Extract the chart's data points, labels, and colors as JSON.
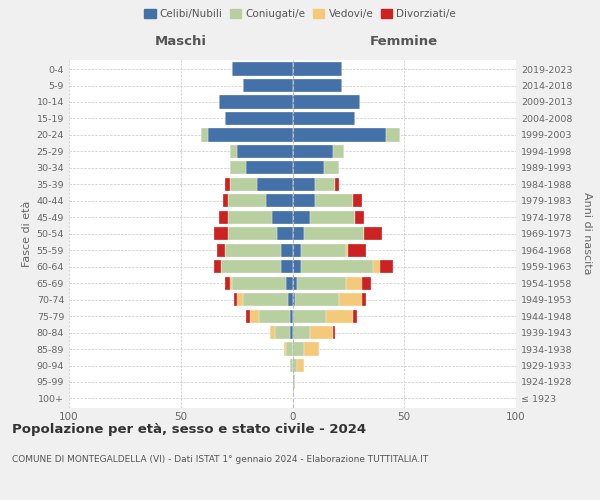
{
  "age_groups": [
    "100+",
    "95-99",
    "90-94",
    "85-89",
    "80-84",
    "75-79",
    "70-74",
    "65-69",
    "60-64",
    "55-59",
    "50-54",
    "45-49",
    "40-44",
    "35-39",
    "30-34",
    "25-29",
    "20-24",
    "15-19",
    "10-14",
    "5-9",
    "0-4"
  ],
  "birth_years": [
    "≤ 1923",
    "1924-1928",
    "1929-1933",
    "1934-1938",
    "1939-1943",
    "1944-1948",
    "1949-1953",
    "1954-1958",
    "1959-1963",
    "1964-1968",
    "1969-1973",
    "1974-1978",
    "1979-1983",
    "1984-1988",
    "1989-1993",
    "1994-1998",
    "1999-2003",
    "2004-2008",
    "2009-2013",
    "2014-2018",
    "2019-2023"
  ],
  "colors": {
    "celibi": "#4472a8",
    "coniugati": "#b8cfa0",
    "vedovi": "#f5c97a",
    "divorziati": "#cc2222"
  },
  "maschi": {
    "celibi": [
      0,
      0,
      0,
      0,
      1,
      1,
      2,
      3,
      5,
      5,
      7,
      9,
      12,
      16,
      21,
      25,
      38,
      30,
      33,
      22,
      27
    ],
    "coniugati": [
      0,
      0,
      1,
      3,
      7,
      14,
      20,
      24,
      27,
      25,
      22,
      20,
      17,
      12,
      7,
      3,
      3,
      0,
      0,
      0,
      0
    ],
    "vedovi": [
      0,
      0,
      0,
      1,
      2,
      4,
      3,
      1,
      0,
      0,
      0,
      0,
      0,
      0,
      0,
      0,
      0,
      0,
      0,
      0,
      0
    ],
    "divorziati": [
      0,
      0,
      0,
      0,
      0,
      2,
      1,
      2,
      3,
      4,
      6,
      4,
      2,
      2,
      0,
      0,
      0,
      0,
      0,
      0,
      0
    ]
  },
  "femmine": {
    "nubili": [
      0,
      0,
      0,
      0,
      0,
      0,
      1,
      2,
      4,
      4,
      5,
      8,
      10,
      10,
      14,
      18,
      42,
      28,
      30,
      22,
      22
    ],
    "coniugate": [
      0,
      1,
      2,
      5,
      8,
      15,
      20,
      22,
      32,
      20,
      27,
      20,
      17,
      9,
      7,
      5,
      6,
      0,
      0,
      0,
      0
    ],
    "vedove": [
      0,
      0,
      3,
      7,
      10,
      12,
      10,
      7,
      3,
      1,
      0,
      0,
      0,
      0,
      0,
      0,
      0,
      0,
      0,
      0,
      0
    ],
    "divorziate": [
      0,
      0,
      0,
      0,
      1,
      2,
      2,
      4,
      6,
      8,
      8,
      4,
      4,
      2,
      0,
      0,
      0,
      0,
      0,
      0,
      0
    ]
  },
  "xlim": 100,
  "title": "Popolazione per età, sesso e stato civile - 2024",
  "subtitle": "COMUNE DI MONTEGALDELLA (VI) - Dati ISTAT 1° gennaio 2024 - Elaborazione TUTTITALIA.IT",
  "xlabel_left": "Maschi",
  "xlabel_right": "Femmine",
  "ylabel_left": "Fasce di età",
  "ylabel_right": "Anni di nascita",
  "legend_labels": [
    "Celibi/Nubili",
    "Coniugati/e",
    "Vedovi/e",
    "Divorziati/e"
  ],
  "background_color": "#f0f0f0",
  "plot_bg": "#ffffff",
  "grid_color": "#c8c8c8"
}
